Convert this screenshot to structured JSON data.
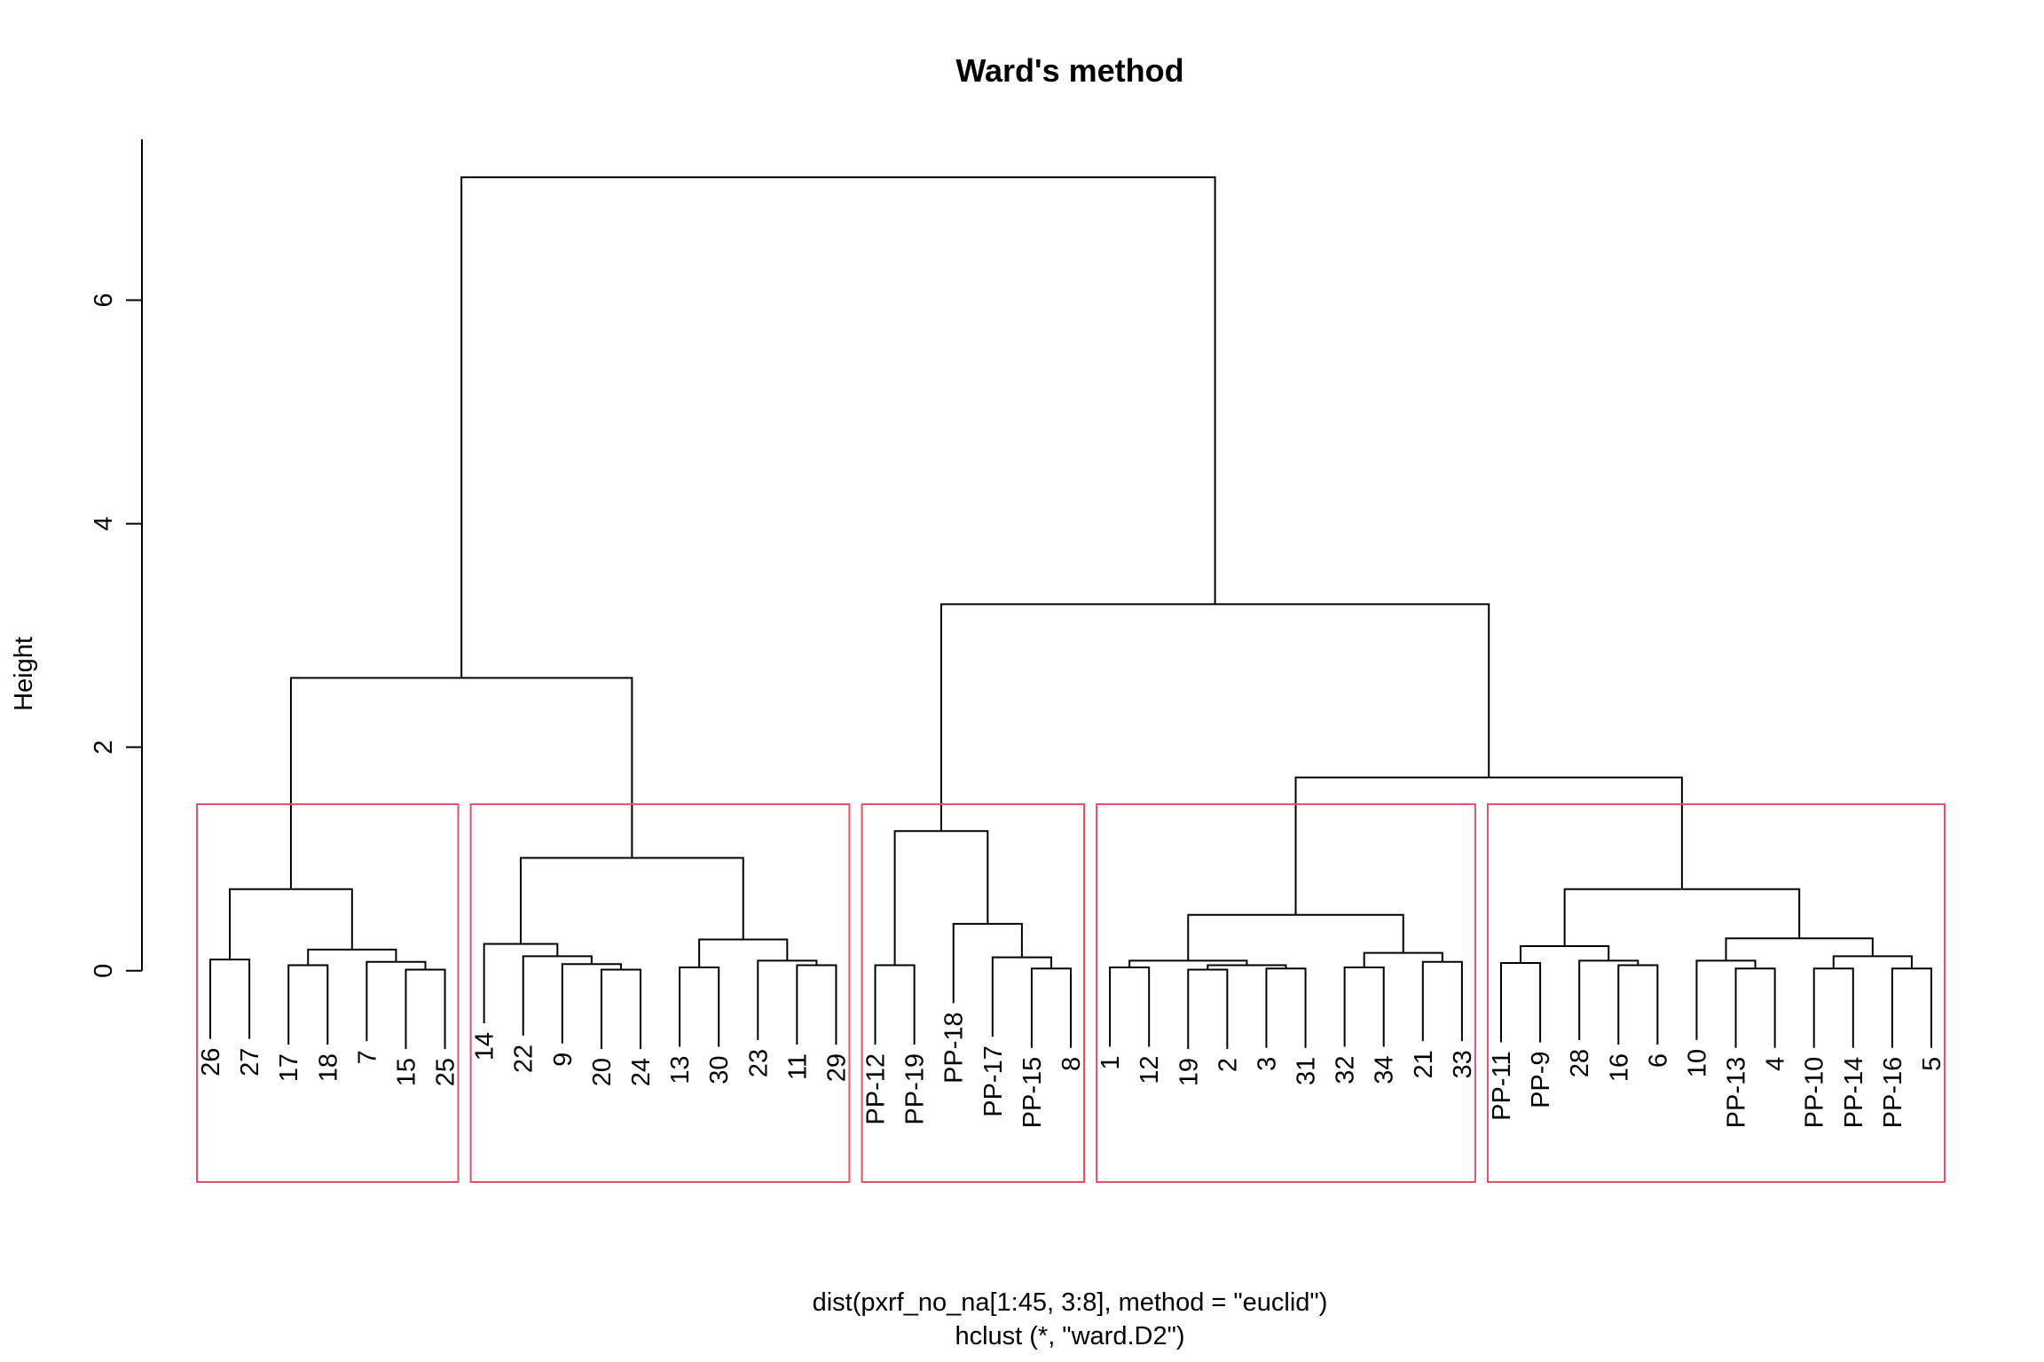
{
  "chart_data": {
    "type": "dendrogram",
    "title": "Ward's method",
    "xlabel": "dist(pxrf_no_na[1:45, 3:8], method = \"euclid\")",
    "subtitle": "hclust (*, \"ward.D2\")",
    "ylabel": "Height",
    "ylim": [
      -1.89,
      7.44
    ],
    "yticks": [
      0,
      2,
      4,
      6
    ],
    "color": "#000000",
    "rect_color": "#DF536B",
    "rect_k": 5,
    "labels": [
      "26",
      "27",
      "17",
      "18",
      "7",
      "15",
      "25",
      "14",
      "22",
      "9",
      "20",
      "24",
      "13",
      "30",
      "23",
      "11",
      "29",
      "PP-12",
      "PP-19",
      "PP-18",
      "PP-17",
      "PP-15",
      "8",
      "1",
      "12",
      "19",
      "2",
      "3",
      "31",
      "32",
      "34",
      "21",
      "33",
      "PP-11",
      "PP-9",
      "28",
      "16",
      "6",
      "10",
      "PP-13",
      "4",
      "PP-10",
      "PP-14",
      "PP-16",
      "5"
    ],
    "merge": [
      [
        -1,
        -2
      ],
      [
        -3,
        -4
      ],
      [
        -6,
        -7
      ],
      [
        -5,
        3
      ],
      [
        2,
        4
      ],
      [
        1,
        5
      ],
      [
        -11,
        -12
      ],
      [
        -10,
        7
      ],
      [
        -9,
        8
      ],
      [
        -8,
        9
      ],
      [
        -13,
        -14
      ],
      [
        -16,
        -17
      ],
      [
        -15,
        12
      ],
      [
        11,
        13
      ],
      [
        10,
        14
      ],
      [
        -18,
        -19
      ],
      [
        -22,
        -23
      ],
      [
        -21,
        17
      ],
      [
        -20,
        18
      ],
      [
        16,
        19
      ],
      [
        -24,
        -25
      ],
      [
        -26,
        -27
      ],
      [
        -28,
        -29
      ],
      [
        22,
        23
      ],
      [
        21,
        24
      ],
      [
        -30,
        -31
      ],
      [
        -32,
        -33
      ],
      [
        26,
        27
      ],
      [
        25,
        28
      ],
      [
        -34,
        -35
      ],
      [
        -37,
        -38
      ],
      [
        -36,
        31
      ],
      [
        30,
        32
      ],
      [
        -40,
        -41
      ],
      [
        -39,
        34
      ],
      [
        -42,
        -43
      ],
      [
        -44,
        -45
      ],
      [
        36,
        37
      ],
      [
        35,
        38
      ],
      [
        33,
        39
      ],
      [
        29,
        40
      ],
      [
        6,
        15
      ],
      [
        20,
        41
      ],
      [
        42,
        43
      ]
    ],
    "height": [
      0.1,
      0.05,
      0.01,
      0.08,
      0.19,
      0.73,
      0.01,
      0.06,
      0.13,
      0.24,
      0.03,
      0.05,
      0.09,
      0.28,
      1.01,
      0.05,
      0.02,
      0.12,
      0.42,
      1.25,
      0.03,
      0.01,
      0.02,
      0.05,
      0.09,
      0.03,
      0.08,
      0.16,
      0.5,
      0.07,
      0.05,
      0.09,
      0.22,
      0.02,
      0.09,
      0.02,
      0.02,
      0.13,
      0.29,
      0.73,
      1.73,
      2.62,
      3.28,
      7.1
    ]
  }
}
